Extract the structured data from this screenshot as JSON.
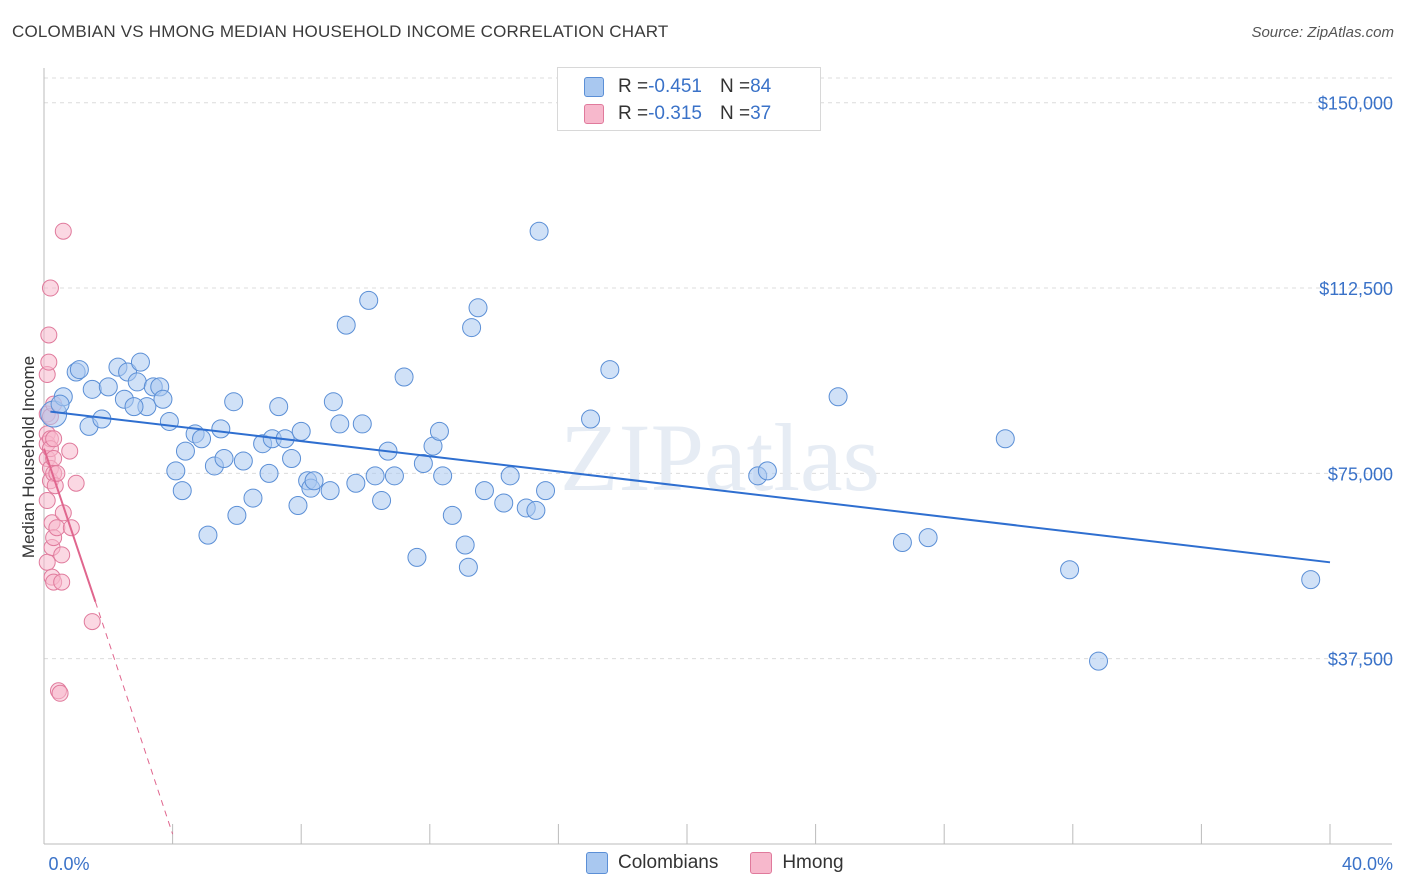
{
  "header": {
    "title": "COLOMBIAN VS HMONG MEDIAN HOUSEHOLD INCOME CORRELATION CHART",
    "source": "Source: ZipAtlas.com"
  },
  "watermark": "ZIPatlas",
  "legend": {
    "rows": [
      {
        "r_label": "R = ",
        "r_value": "-0.451",
        "n_label": "N = ",
        "n_value": "84",
        "color": "#a9c8f0"
      },
      {
        "r_label": "R = ",
        "r_value": "-0.315",
        "n_label": "N = ",
        "n_value": "37",
        "color": "#f7b8cc"
      }
    ]
  },
  "bottom_legend": {
    "items": [
      {
        "label": "Colombians",
        "color": "#a9c8f0"
      },
      {
        "label": "Hmong",
        "color": "#f7b8cc"
      }
    ]
  },
  "colors": {
    "blue_fill": "#a9c8f0",
    "blue_stroke": "#5b8fd6",
    "blue_line": "#2f6fd0",
    "pink_fill": "#f7b8cc",
    "pink_stroke": "#e07a9c",
    "pink_line": "#e0668e",
    "grid": "#dcdcdc",
    "tick_text": "#3a72c8"
  },
  "chart_data": {
    "type": "scatter",
    "title": "COLOMBIAN VS HMONG MEDIAN HOUSEHOLD INCOME CORRELATION CHART",
    "xlabel": "",
    "ylabel": "Median Household Income",
    "xlim": [
      0,
      40
    ],
    "ylim": [
      0,
      155000
    ],
    "x_tick_labels": [
      "0.0%",
      "40.0%"
    ],
    "y_ticks": [
      37500,
      75000,
      112500,
      150000
    ],
    "y_tick_labels": [
      "$37,500",
      "$75,000",
      "$112,500",
      "$150,000"
    ],
    "series": [
      {
        "name": "Colombians",
        "r": -0.451,
        "n": 84,
        "trend": {
          "x": [
            0.2,
            40
          ],
          "y": [
            87500,
            57000
          ]
        },
        "points": [
          [
            0.3,
            87000
          ],
          [
            0.6,
            90500
          ],
          [
            1.0,
            95500
          ],
          [
            1.1,
            96000
          ],
          [
            1.4,
            84500
          ],
          [
            1.5,
            92000
          ],
          [
            1.8,
            86000
          ],
          [
            2.0,
            92500
          ],
          [
            2.3,
            96500
          ],
          [
            2.5,
            90000
          ],
          [
            2.6,
            95500
          ],
          [
            2.9,
            93500
          ],
          [
            3.0,
            97500
          ],
          [
            3.2,
            88500
          ],
          [
            3.4,
            92500
          ],
          [
            3.6,
            92500
          ],
          [
            3.7,
            90000
          ],
          [
            3.9,
            85500
          ],
          [
            4.1,
            75500
          ],
          [
            4.3,
            71500
          ],
          [
            4.4,
            79500
          ],
          [
            4.7,
            83000
          ],
          [
            4.9,
            82000
          ],
          [
            5.1,
            62500
          ],
          [
            5.3,
            76500
          ],
          [
            5.5,
            84000
          ],
          [
            5.6,
            78000
          ],
          [
            5.9,
            89500
          ],
          [
            6.0,
            66500
          ],
          [
            6.2,
            77500
          ],
          [
            6.5,
            70000
          ],
          [
            6.8,
            81000
          ],
          [
            7.0,
            75000
          ],
          [
            7.1,
            82000
          ],
          [
            7.3,
            88500
          ],
          [
            7.5,
            82000
          ],
          [
            7.7,
            78000
          ],
          [
            7.9,
            68500
          ],
          [
            8.0,
            83500
          ],
          [
            8.2,
            73500
          ],
          [
            8.3,
            72000
          ],
          [
            8.4,
            73500
          ],
          [
            8.9,
            71500
          ],
          [
            9.0,
            89500
          ],
          [
            9.2,
            85000
          ],
          [
            9.4,
            105000
          ],
          [
            9.7,
            73000
          ],
          [
            9.9,
            85000
          ],
          [
            10.1,
            110000
          ],
          [
            10.3,
            74500
          ],
          [
            10.5,
            69500
          ],
          [
            10.7,
            79500
          ],
          [
            10.9,
            74500
          ],
          [
            11.2,
            94500
          ],
          [
            11.6,
            58000
          ],
          [
            11.8,
            77000
          ],
          [
            12.1,
            80500
          ],
          [
            12.3,
            83500
          ],
          [
            12.4,
            74500
          ],
          [
            12.7,
            66500
          ],
          [
            13.1,
            60500
          ],
          [
            13.2,
            56000
          ],
          [
            13.3,
            104500
          ],
          [
            13.5,
            108500
          ],
          [
            13.7,
            71500
          ],
          [
            14.3,
            69000
          ],
          [
            14.5,
            74500
          ],
          [
            15.0,
            68000
          ],
          [
            15.3,
            67500
          ],
          [
            15.4,
            124000
          ],
          [
            15.6,
            71500
          ],
          [
            17.0,
            86000
          ],
          [
            17.6,
            96000
          ],
          [
            22.2,
            74500
          ],
          [
            22.5,
            75500
          ],
          [
            24.7,
            90500
          ],
          [
            26.7,
            61000
          ],
          [
            27.5,
            62000
          ],
          [
            29.9,
            82000
          ],
          [
            31.9,
            55500
          ],
          [
            32.8,
            37000
          ],
          [
            39.4,
            53500
          ],
          [
            0.5,
            89000
          ],
          [
            2.8,
            88500
          ]
        ]
      },
      {
        "name": "Hmong",
        "r": -0.315,
        "n": 37,
        "trend": {
          "x": [
            0.0,
            1.6
          ],
          "y": [
            80000,
            49000
          ]
        },
        "trend_extension": {
          "x": [
            1.6,
            4.0
          ],
          "y": [
            49000,
            2000
          ]
        },
        "points": [
          [
            0.1,
            95000
          ],
          [
            0.1,
            87000
          ],
          [
            0.1,
            83000
          ],
          [
            0.1,
            81000
          ],
          [
            0.1,
            78000
          ],
          [
            0.1,
            69500
          ],
          [
            0.1,
            57000
          ],
          [
            0.15,
            97500
          ],
          [
            0.15,
            103000
          ],
          [
            0.2,
            112500
          ],
          [
            0.2,
            86500
          ],
          [
            0.2,
            82000
          ],
          [
            0.2,
            80000
          ],
          [
            0.2,
            76000
          ],
          [
            0.2,
            73500
          ],
          [
            0.25,
            65000
          ],
          [
            0.25,
            60000
          ],
          [
            0.25,
            54000
          ],
          [
            0.3,
            89000
          ],
          [
            0.3,
            82000
          ],
          [
            0.3,
            78000
          ],
          [
            0.3,
            75000
          ],
          [
            0.3,
            62000
          ],
          [
            0.3,
            53000
          ],
          [
            0.35,
            72500
          ],
          [
            0.4,
            75000
          ],
          [
            0.4,
            64000
          ],
          [
            0.45,
            31000
          ],
          [
            0.5,
            30500
          ],
          [
            0.55,
            58500
          ],
          [
            0.55,
            53000
          ],
          [
            0.6,
            124000
          ],
          [
            0.6,
            67000
          ],
          [
            0.8,
            79500
          ],
          [
            0.85,
            64000
          ],
          [
            1.0,
            73000
          ],
          [
            1.5,
            45000
          ]
        ]
      }
    ]
  }
}
